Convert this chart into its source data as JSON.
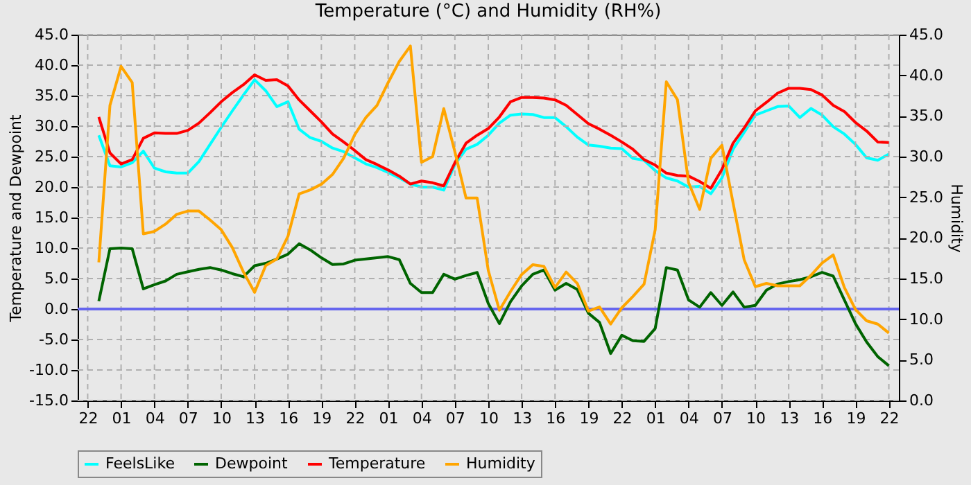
{
  "chart_data": {
    "type": "line",
    "title": "Temperature (°C) and Humidity (RH%)",
    "ylabel": "Temperature and Dewpoint",
    "y2label": "Humidity",
    "categories": [
      "22",
      null,
      null,
      "01",
      null,
      null,
      "04",
      null,
      null,
      "07",
      null,
      null,
      "10",
      null,
      null,
      "13",
      null,
      null,
      "16",
      null,
      null,
      "19",
      null,
      null,
      "22",
      null,
      null,
      "01",
      null,
      null,
      "04",
      null,
      null,
      "07",
      null,
      null,
      "10",
      null,
      null,
      "13",
      null,
      null,
      "16",
      null,
      null,
      "19",
      null,
      null,
      "22",
      null,
      null,
      "01",
      null,
      null,
      "04",
      null,
      null,
      "07",
      null,
      null,
      "10",
      null,
      null,
      "13",
      null,
      null,
      "16",
      null,
      null,
      "19",
      null,
      null,
      "22"
    ],
    "ylim": [
      -15,
      45
    ],
    "yticks": [
      {
        "value": -15,
        "label": "-15.0"
      },
      {
        "value": -10,
        "label": "-10.0"
      },
      {
        "value": -5,
        "label": "-5.0"
      },
      {
        "value": 0,
        "label": "0.0"
      },
      {
        "value": 5,
        "label": "5.0"
      },
      {
        "value": 10,
        "label": "10.0"
      },
      {
        "value": 15,
        "label": "15.0"
      },
      {
        "value": 20,
        "label": "20.0"
      },
      {
        "value": 25,
        "label": "25.0"
      },
      {
        "value": 30,
        "label": "30.0"
      },
      {
        "value": 35,
        "label": "35.0"
      },
      {
        "value": 40,
        "label": "40.0"
      },
      {
        "value": 45,
        "label": "45.0"
      }
    ],
    "y2lim": [
      0,
      45
    ],
    "y2ticks": [
      {
        "value": 0,
        "label": "0.0"
      },
      {
        "value": 5,
        "label": "5.0"
      },
      {
        "value": 10,
        "label": "10.0"
      },
      {
        "value": 15,
        "label": "15.0"
      },
      {
        "value": 20,
        "label": "20.0"
      },
      {
        "value": 25,
        "label": "25.0"
      },
      {
        "value": 30,
        "label": "30.0"
      },
      {
        "value": 35,
        "label": "35.0"
      },
      {
        "value": 40,
        "label": "40.0"
      },
      {
        "value": 45,
        "label": "45.0"
      }
    ],
    "grid": true,
    "legend": "bottom",
    "ref_lines": [
      {
        "axis": "y",
        "value": 0,
        "color": "#6666ee",
        "line_style": "solid"
      }
    ],
    "series": [
      {
        "name": "FeelsLike",
        "color": "#00ffff",
        "values": [
          null,
          28.5,
          23.5,
          23.3,
          24,
          25.9,
          23.1,
          22.5,
          22.3,
          22.3,
          24.2,
          27,
          29.8,
          32.5,
          35.1,
          37.6,
          35.8,
          33.2,
          34,
          29.5,
          28.1,
          27.5,
          26.4,
          25.8,
          24.8,
          23.8,
          23.2,
          22.4,
          21.5,
          20.5,
          20,
          20,
          19.5,
          23.7,
          26.2,
          27,
          28.5,
          30.5,
          31.8,
          32,
          31.9,
          31.4,
          31.4,
          29.9,
          28.2,
          26.9,
          26.7,
          26.4,
          26.3,
          24.7,
          24.4,
          22.7,
          21.5,
          21,
          20,
          20.1,
          18.9,
          21.5,
          26.2,
          29,
          31.8,
          32.5,
          33.2,
          33.3,
          31.4,
          32.9,
          31.8,
          29.9,
          28.7,
          27,
          24.8,
          24.4,
          25.4
        ]
      },
      {
        "name": "Dewpoint",
        "color": "#006400",
        "values": [
          null,
          1.3,
          9.9,
          10,
          9.9,
          3.3,
          4,
          4.6,
          5.7,
          6.1,
          6.5,
          6.8,
          6.4,
          5.8,
          5.3,
          7.1,
          7.5,
          8.2,
          9,
          10.7,
          9.7,
          8.4,
          7.3,
          7.4,
          8,
          8.2,
          8.4,
          8.6,
          8.1,
          4.2,
          2.7,
          2.7,
          5.7,
          4.9,
          5.5,
          6,
          0.9,
          -2.4,
          1.2,
          3.8,
          5.7,
          6.4,
          3.1,
          4.2,
          3.2,
          -0.7,
          -2.2,
          -7.3,
          -4.3,
          -5.2,
          -5.3,
          -3.2,
          6.8,
          6.4,
          1.5,
          0.3,
          2.7,
          0.6,
          2.8,
          0.3,
          0.6,
          3.1,
          4.1,
          4.5,
          4.8,
          5.3,
          6,
          5.4,
          1.5,
          -2.4,
          -5.4,
          -7.8,
          -9.3
        ]
      },
      {
        "name": "Temperature",
        "color": "#ff0000",
        "values": [
          null,
          31.5,
          25.6,
          23.8,
          24.5,
          28,
          28.9,
          28.8,
          28.8,
          29.3,
          30.5,
          32.2,
          34,
          35.5,
          36.8,
          38.4,
          37.5,
          37.6,
          36.6,
          34.3,
          32.5,
          30.7,
          28.7,
          27.4,
          26,
          24.5,
          23.7,
          22.8,
          21.8,
          20.5,
          21,
          20.7,
          20.2,
          24,
          27.2,
          28.5,
          29.6,
          31.5,
          34,
          34.7,
          34.7,
          34.6,
          34.3,
          33.4,
          31.9,
          30.4,
          29.5,
          28.5,
          27.4,
          26.2,
          24.5,
          23.6,
          22.3,
          21.9,
          21.8,
          20.9,
          19.8,
          22.9,
          27.2,
          29.7,
          32.5,
          33.9,
          35.4,
          36.2,
          36.2,
          36,
          35.1,
          33.4,
          32.4,
          30.6,
          29.2,
          27.4,
          27.3
        ]
      },
      {
        "name": "Humidity",
        "color": "#ffa500",
        "axis": "y2",
        "values": [
          null,
          17,
          36.3,
          41.1,
          39.1,
          20.5,
          20.8,
          21.7,
          22.9,
          23.3,
          23.3,
          22.2,
          21,
          18.8,
          15.8,
          13.3,
          16.6,
          17.4,
          20.2,
          25.4,
          25.9,
          26.6,
          27.8,
          29.8,
          32.7,
          34.8,
          36.3,
          39.1,
          41.7,
          43.6,
          29.3,
          30,
          35.9,
          30.6,
          24.9,
          24.9,
          16,
          11.1,
          13.4,
          15.5,
          16.7,
          16.5,
          13.9,
          15.8,
          14.4,
          11,
          11.5,
          9.4,
          11.4,
          12.8,
          14.3,
          21,
          39.2,
          37,
          26.8,
          23.5,
          29.8,
          31.4,
          24.3,
          17.3,
          14,
          14.4,
          14.1,
          14.1,
          14.1,
          15.4,
          16.9,
          17.9,
          13.9,
          11.2,
          9.8,
          9.4,
          8.3
        ]
      }
    ]
  }
}
